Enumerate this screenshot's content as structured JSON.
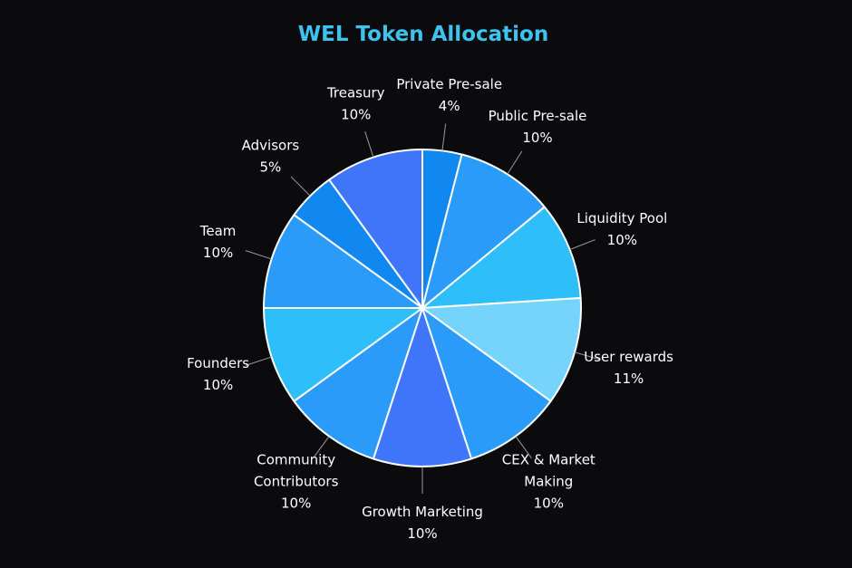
{
  "chart_data": {
    "type": "pie",
    "title": "WEL Token Allocation",
    "title_color": "#3ec3ef",
    "background": "#0b0b0e",
    "slice_border_color": "#ffffff",
    "label_color": "#ffffff",
    "slices": [
      {
        "label_lines": [
          "Private Pre-sale"
        ],
        "value": 4,
        "value_label": "4%",
        "color": "#1088f0"
      },
      {
        "label_lines": [
          "Public Pre-sale"
        ],
        "value": 10,
        "value_label": "10%",
        "color": "#2b9bfa"
      },
      {
        "label_lines": [
          "Liquidity Pool"
        ],
        "value": 10,
        "value_label": "10%",
        "color": "#2ebef9"
      },
      {
        "label_lines": [
          "User rewards"
        ],
        "value": 11,
        "value_label": "11%",
        "color": "#75d3fc"
      },
      {
        "label_lines": [
          "CEX & Market",
          "Making"
        ],
        "value": 10,
        "value_label": "10%",
        "color": "#2b9bfa"
      },
      {
        "label_lines": [
          "Growth Marketing"
        ],
        "value": 10,
        "value_label": "10%",
        "color": "#3f76f9"
      },
      {
        "label_lines": [
          "Community",
          "Contributors"
        ],
        "value": 10,
        "value_label": "10%",
        "color": "#2b9bfa"
      },
      {
        "label_lines": [
          "Founders"
        ],
        "value": 10,
        "value_label": "10%",
        "color": "#2ebef9"
      },
      {
        "label_lines": [
          "Team"
        ],
        "value": 10,
        "value_label": "10%",
        "color": "#2b9bfa"
      },
      {
        "label_lines": [
          "Advisors"
        ],
        "value": 5,
        "value_label": "5%",
        "color": "#1088f0"
      },
      {
        "label_lines": [
          "Treasury"
        ],
        "value": 10,
        "value_label": "10%",
        "color": "#3f76f9"
      }
    ]
  }
}
